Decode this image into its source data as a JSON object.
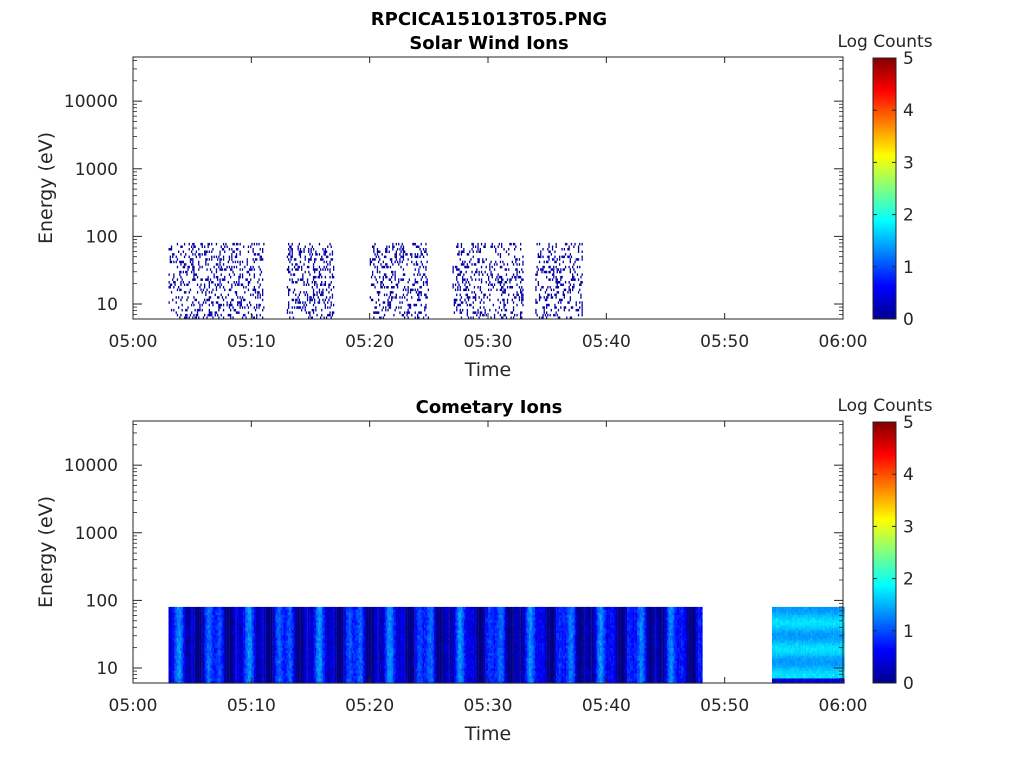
{
  "figure_title": "RPCICA151013T05.PNG",
  "chart_data": [
    {
      "type": "heatmap",
      "title": "Solar Wind Ions",
      "xlabel": "Time",
      "ylabel": "Energy (eV)",
      "x_ticks": [
        "05:00",
        "05:10",
        "05:20",
        "05:30",
        "05:40",
        "05:50",
        "06:00"
      ],
      "xlim": [
        "05:00",
        "06:00"
      ],
      "y_scale": "log",
      "y_ticks": [
        10,
        100,
        1000,
        10000
      ],
      "y_tick_labels": [
        "10",
        "100",
        "1000",
        "10000"
      ],
      "ylim": [
        6,
        45000
      ],
      "colorbar": {
        "label": "Log Counts",
        "range": [
          0,
          5
        ],
        "ticks": [
          "0",
          "1",
          "2",
          "3",
          "4",
          "5"
        ],
        "colormap": "jet"
      },
      "data_time_range": [
        "05:03",
        "05:38"
      ],
      "data_energy_range_eV": [
        6,
        80
      ],
      "typical_log_counts": [
        0,
        0.5
      ],
      "activity_intervals": [
        {
          "start": "05:03",
          "end": "05:07",
          "level": 0.2
        },
        {
          "start": "05:07",
          "end": "05:11",
          "level": 0.25
        },
        {
          "start": "05:13",
          "end": "05:17",
          "level": 0.2
        },
        {
          "start": "05:20",
          "end": "05:22",
          "level": 0.1
        },
        {
          "start": "05:22",
          "end": "05:25",
          "level": 0.25
        },
        {
          "start": "05:27",
          "end": "05:33",
          "level": 0.2
        },
        {
          "start": "05:34",
          "end": "05:38",
          "level": 0.2
        }
      ],
      "grid": false
    },
    {
      "type": "heatmap",
      "title": "Cometary Ions",
      "xlabel": "Time",
      "ylabel": "Energy (eV)",
      "x_ticks": [
        "05:00",
        "05:10",
        "05:20",
        "05:30",
        "05:40",
        "05:50",
        "06:00"
      ],
      "xlim": [
        "05:00",
        "06:00"
      ],
      "y_scale": "log",
      "y_ticks": [
        10,
        100,
        1000,
        10000
      ],
      "y_tick_labels": [
        "10",
        "100",
        "1000",
        "10000"
      ],
      "ylim": [
        6,
        45000
      ],
      "colorbar": {
        "label": "Log Counts",
        "range": [
          0,
          5
        ],
        "ticks": [
          "0",
          "1",
          "2",
          "3",
          "4",
          "5"
        ],
        "colormap": "jet"
      },
      "data_segments": [
        {
          "start": "05:03",
          "end": "05:48",
          "energy_eV": [
            6,
            80
          ],
          "log_counts_range": [
            0,
            1.5
          ]
        },
        {
          "start": "05:54",
          "end": "06:00",
          "energy_eV": [
            6,
            80
          ],
          "log_counts_range": [
            0.8,
            2.0
          ]
        }
      ],
      "grid": false
    }
  ]
}
